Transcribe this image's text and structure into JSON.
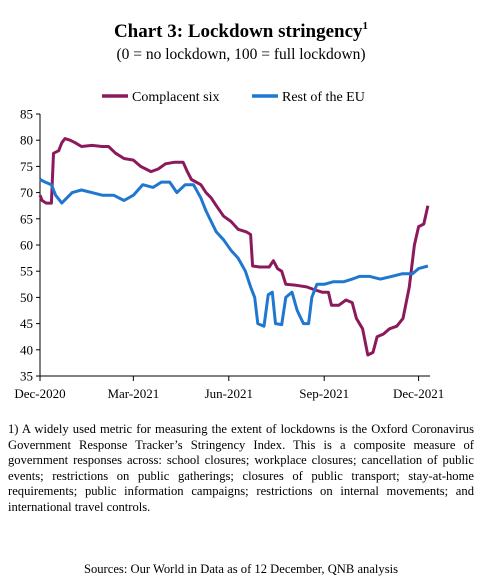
{
  "title": "Chart 3: Lockdown stringency",
  "title_superscript": "1",
  "subtitle": "(0 = no lockdown, 100 = full lockdown)",
  "note": "1) A widely used metric for measuring the extent of lockdowns is the Oxford Coronavirus Government Response Tracker’s Stringency Index. This is a composite measure of government responses across: school closures; workplace closures; cancellation of public events; restrictions on public gatherings; closures of public transport; stay-at-home requirements; public information campaigns; restrictions on internal movements; and international travel controls.",
  "sources": "Sources: Our World in Data as of 12 December, QNB analysis",
  "chart_data": {
    "type": "line",
    "title": "Chart 3: Lockdown stringency",
    "subtitle": "(0 = no lockdown, 100 = full lockdown)",
    "xlabel": "",
    "ylabel": "",
    "ylim": [
      35,
      85
    ],
    "yticks": [
      35,
      40,
      45,
      50,
      55,
      60,
      65,
      70,
      75,
      80,
      85
    ],
    "xlim": [
      "2020-12-01",
      "2021-12-12"
    ],
    "xticks": [
      {
        "date": "2020-12-01",
        "label": "Dec-2020"
      },
      {
        "date": "2021-03-01",
        "label": "Mar-2021"
      },
      {
        "date": "2021-06-01",
        "label": "Jun-2021"
      },
      {
        "date": "2021-09-01",
        "label": "Sep-2021"
      },
      {
        "date": "2021-12-01",
        "label": "Dec-2021"
      }
    ],
    "grid": false,
    "legend_position": "top",
    "series": [
      {
        "name": "Complacent six",
        "color": "#8B1A5C",
        "points": [
          [
            "2020-12-01",
            69.5
          ],
          [
            "2020-12-03",
            68.5
          ],
          [
            "2020-12-07",
            68.0
          ],
          [
            "2020-12-12",
            68.0
          ],
          [
            "2020-12-14",
            77.5
          ],
          [
            "2020-12-19",
            78.0
          ],
          [
            "2020-12-22",
            79.5
          ],
          [
            "2020-12-25",
            80.3
          ],
          [
            "2020-12-30",
            80.0
          ],
          [
            "2021-01-04",
            79.5
          ],
          [
            "2021-01-10",
            78.8
          ],
          [
            "2021-01-20",
            79.0
          ],
          [
            "2021-01-30",
            78.8
          ],
          [
            "2021-02-05",
            78.8
          ],
          [
            "2021-02-12",
            77.5
          ],
          [
            "2021-02-20",
            76.5
          ],
          [
            "2021-03-01",
            76.2
          ],
          [
            "2021-03-08",
            75.0
          ],
          [
            "2021-03-18",
            74.0
          ],
          [
            "2021-03-25",
            74.5
          ],
          [
            "2021-04-01",
            75.5
          ],
          [
            "2021-04-10",
            75.8
          ],
          [
            "2021-04-18",
            75.8
          ],
          [
            "2021-04-22",
            74.0
          ],
          [
            "2021-04-26",
            72.5
          ],
          [
            "2021-05-05",
            71.5
          ],
          [
            "2021-05-10",
            70.0
          ],
          [
            "2021-05-15",
            69.0
          ],
          [
            "2021-05-20",
            67.5
          ],
          [
            "2021-05-27",
            65.5
          ],
          [
            "2021-06-03",
            64.5
          ],
          [
            "2021-06-10",
            63.0
          ],
          [
            "2021-06-18",
            62.5
          ],
          [
            "2021-06-22",
            62.0
          ],
          [
            "2021-06-24",
            56.0
          ],
          [
            "2021-07-01",
            55.8
          ],
          [
            "2021-07-10",
            55.8
          ],
          [
            "2021-07-14",
            57.0
          ],
          [
            "2021-07-18",
            55.5
          ],
          [
            "2021-07-22",
            55.0
          ],
          [
            "2021-07-26",
            52.5
          ],
          [
            "2021-08-05",
            52.3
          ],
          [
            "2021-08-15",
            52.0
          ],
          [
            "2021-08-22",
            51.5
          ],
          [
            "2021-08-30",
            51.0
          ],
          [
            "2021-09-05",
            51.0
          ],
          [
            "2021-09-08",
            48.5
          ],
          [
            "2021-09-15",
            48.5
          ],
          [
            "2021-09-22",
            49.5
          ],
          [
            "2021-09-28",
            49.0
          ],
          [
            "2021-10-02",
            46.0
          ],
          [
            "2021-10-08",
            44.0
          ],
          [
            "2021-10-13",
            39.0
          ],
          [
            "2021-10-18",
            39.5
          ],
          [
            "2021-10-22",
            42.5
          ],
          [
            "2021-10-28",
            43.0
          ],
          [
            "2021-11-03",
            44.0
          ],
          [
            "2021-11-10",
            44.5
          ],
          [
            "2021-11-16",
            46.0
          ],
          [
            "2021-11-22",
            52.0
          ],
          [
            "2021-11-27",
            60.0
          ],
          [
            "2021-12-01",
            63.5
          ],
          [
            "2021-12-06",
            64.0
          ],
          [
            "2021-12-10",
            67.5
          ]
        ]
      },
      {
        "name": "Rest of the EU",
        "color": "#1F77D0",
        "points": [
          [
            "2020-12-01",
            72.5
          ],
          [
            "2020-12-06",
            72.0
          ],
          [
            "2020-12-12",
            71.5
          ],
          [
            "2020-12-16",
            69.5
          ],
          [
            "2020-12-22",
            68.0
          ],
          [
            "2021-01-01",
            70.0
          ],
          [
            "2021-01-10",
            70.5
          ],
          [
            "2021-01-20",
            70.0
          ],
          [
            "2021-01-30",
            69.5
          ],
          [
            "2021-02-10",
            69.5
          ],
          [
            "2021-02-20",
            68.5
          ],
          [
            "2021-03-01",
            69.5
          ],
          [
            "2021-03-10",
            71.5
          ],
          [
            "2021-03-20",
            71.0
          ],
          [
            "2021-03-28",
            72.0
          ],
          [
            "2021-04-05",
            72.0
          ],
          [
            "2021-04-12",
            70.0
          ],
          [
            "2021-04-20",
            71.5
          ],
          [
            "2021-04-28",
            71.5
          ],
          [
            "2021-05-05",
            69.0
          ],
          [
            "2021-05-10",
            66.5
          ],
          [
            "2021-05-15",
            64.5
          ],
          [
            "2021-05-20",
            62.5
          ],
          [
            "2021-05-27",
            61.0
          ],
          [
            "2021-06-03",
            59.0
          ],
          [
            "2021-06-10",
            57.5
          ],
          [
            "2021-06-17",
            55.0
          ],
          [
            "2021-06-22",
            52.0
          ],
          [
            "2021-06-26",
            50.0
          ],
          [
            "2021-06-29",
            45.0
          ],
          [
            "2021-07-05",
            44.5
          ],
          [
            "2021-07-09",
            50.5
          ],
          [
            "2021-07-13",
            51.0
          ],
          [
            "2021-07-16",
            45.0
          ],
          [
            "2021-07-22",
            44.8
          ],
          [
            "2021-07-26",
            50.0
          ],
          [
            "2021-08-01",
            51.0
          ],
          [
            "2021-08-06",
            47.5
          ],
          [
            "2021-08-12",
            45.0
          ],
          [
            "2021-08-17",
            45.0
          ],
          [
            "2021-08-20",
            50.0
          ],
          [
            "2021-08-25",
            52.5
          ],
          [
            "2021-09-01",
            52.5
          ],
          [
            "2021-09-10",
            53.0
          ],
          [
            "2021-09-20",
            53.0
          ],
          [
            "2021-09-28",
            53.5
          ],
          [
            "2021-10-05",
            54.0
          ],
          [
            "2021-10-15",
            54.0
          ],
          [
            "2021-10-25",
            53.5
          ],
          [
            "2021-11-05",
            54.0
          ],
          [
            "2021-11-15",
            54.5
          ],
          [
            "2021-11-25",
            54.5
          ],
          [
            "2021-12-01",
            55.5
          ],
          [
            "2021-12-10",
            56.0
          ]
        ]
      }
    ]
  }
}
